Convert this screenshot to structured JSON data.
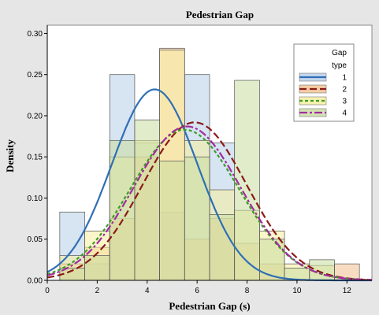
{
  "chart_data": {
    "type": "histogram",
    "title": "Pedestrian Gap",
    "xlabel": "Pedestrian Gap (s)",
    "ylabel": "Density",
    "xlim": [
      0,
      13
    ],
    "ylim": [
      0,
      0.31
    ],
    "xticks": [
      "0",
      "2",
      "4",
      "6",
      "8",
      "10",
      "12"
    ],
    "yticks": [
      "0.00",
      "0.05",
      "0.10",
      "0.15",
      "0.20",
      "0.25",
      "0.30"
    ],
    "bin_edges": [
      0.5,
      1.5,
      2.5,
      3.5,
      4.5,
      5.5,
      6.5,
      7.5,
      8.5,
      9.5,
      10.5,
      11.5,
      12.5
    ],
    "legend": {
      "title": [
        "Gap",
        "type"
      ],
      "position": "top-right"
    },
    "series": [
      {
        "name": "1",
        "color": "#2f6fb5",
        "fill": "#b7cde8",
        "dash": "",
        "bars": [
          0.083,
          0.02,
          0.25,
          0.167,
          0.083,
          0.25,
          0.167,
          0,
          0,
          0,
          0,
          0
        ],
        "curve_mean": 4.3,
        "curve_peak": 0.232
      },
      {
        "name": "2",
        "color": "#8b1a1a",
        "fill": "#f2c08f",
        "dash": "9,4",
        "bars": [
          0.02,
          0.04,
          0.075,
          0.15,
          0.282,
          0.05,
          0.075,
          0.045,
          0.02,
          0,
          0,
          0.02
        ],
        "curve_mean": 5.9,
        "curve_peak": 0.192
      },
      {
        "name": "3",
        "color": "#3c9e24",
        "fill": "#f6ef9e",
        "dash": "4,3",
        "bars": [
          0.03,
          0.06,
          0.15,
          0.17,
          0.28,
          0.17,
          0.11,
          0.085,
          0.06,
          0.02,
          0.018,
          0
        ],
        "curve_mean": 5.5,
        "curve_peak": 0.183
      },
      {
        "name": "4",
        "color": "#a12c9f",
        "fill": "#c9dca0",
        "dash": "10,3,3,3",
        "bars": [
          0.015,
          0.03,
          0.17,
          0.195,
          0.145,
          0.15,
          0.08,
          0.243,
          0.05,
          0.015,
          0.025,
          0
        ],
        "curve_mean": 5.6,
        "curve_peak": 0.187
      }
    ]
  }
}
